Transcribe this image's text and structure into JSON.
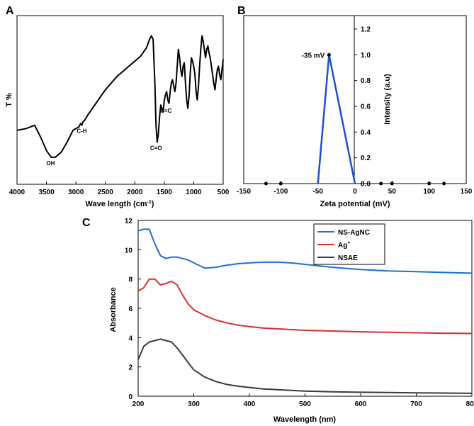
{
  "chart_data": [
    {
      "panel": "A",
      "type": "line",
      "title": "",
      "xlabel": "Wave length (cm",
      "xlabel_sup": "-1",
      "xlabel_suffix": ")",
      "ylabel": "T %",
      "xlim": [
        4000,
        500
      ],
      "ylim": [
        0,
        100
      ],
      "xticks": [
        4000,
        3500,
        3000,
        2500,
        2000,
        1500,
        1000,
        500
      ],
      "x": [
        4000,
        3850,
        3700,
        3600,
        3500,
        3420,
        3350,
        3250,
        3150,
        3050,
        2950,
        2920,
        2900,
        2880,
        2850,
        2800,
        2700,
        2600,
        2500,
        2400,
        2300,
        2200,
        2100,
        2000,
        1900,
        1800,
        1750,
        1720,
        1690,
        1660,
        1640,
        1620,
        1600,
        1580,
        1560,
        1540,
        1520,
        1500,
        1480,
        1460,
        1440,
        1420,
        1400,
        1380,
        1360,
        1340,
        1320,
        1300,
        1280,
        1260,
        1240,
        1220,
        1200,
        1180,
        1160,
        1140,
        1120,
        1100,
        1080,
        1060,
        1040,
        1020,
        1000,
        980,
        960,
        940,
        920,
        900,
        880,
        860,
        840,
        820,
        800,
        780,
        760,
        740,
        720,
        700,
        680,
        660,
        640,
        620,
        600,
        580,
        560,
        540,
        520,
        500
      ],
      "y": [
        32,
        33,
        35,
        28,
        20,
        16,
        16,
        19,
        25,
        32,
        34,
        36,
        35,
        37,
        38,
        41,
        46,
        51,
        56,
        60,
        64,
        67,
        70,
        73,
        76,
        81,
        86,
        88,
        86,
        60,
        35,
        25,
        30,
        40,
        47,
        45,
        43,
        50,
        53,
        55,
        50,
        48,
        55,
        60,
        62,
        58,
        55,
        60,
        70,
        80,
        75,
        68,
        64,
        70,
        72,
        60,
        50,
        45,
        52,
        65,
        75,
        73,
        70,
        65,
        55,
        50,
        58,
        70,
        80,
        88,
        85,
        80,
        75,
        80,
        82,
        78,
        75,
        70,
        65,
        60,
        56,
        62,
        68,
        70,
        65,
        62,
        68,
        74
      ],
      "annotations": [
        {
          "text": "OH",
          "x": 3430,
          "y": 16
        },
        {
          "text": "C-H",
          "x": 2900,
          "y": 35
        },
        {
          "text": "C=O",
          "x": 1640,
          "y": 25
        },
        {
          "text": "C=C",
          "x": 1470,
          "y": 47
        }
      ]
    },
    {
      "panel": "B",
      "type": "line",
      "title": "",
      "xlabel": "Zeta potential (mV)",
      "ylabel": "Intensity (a.u)",
      "xlim": [
        -150,
        150
      ],
      "ylim": [
        0,
        1.3
      ],
      "xticks": [
        -150,
        -100,
        -50,
        0,
        50,
        100,
        150
      ],
      "yticks": [
        0.0,
        0.2,
        0.4,
        0.6,
        0.8,
        1.0,
        1.2
      ],
      "ytick_labels": [
        "0.0",
        "0.2",
        "0.4",
        "0.6",
        "0.8",
        "1.0",
        "1.2"
      ],
      "x": [
        -50,
        -35,
        0
      ],
      "y": [
        0,
        1.0,
        0
      ],
      "markers": {
        "x": [
          -120,
          -100,
          -35,
          35,
          50,
          100,
          120
        ],
        "y": [
          0,
          0,
          1.0,
          0,
          0,
          0,
          0
        ]
      },
      "annotations": [
        {
          "text": "-35 mV",
          "x": -35,
          "y": 1.0
        }
      ]
    },
    {
      "panel": "C",
      "type": "line",
      "title": "",
      "xlabel": "Wavelength (nm)",
      "ylabel": "Absorbance",
      "xlim": [
        200,
        800
      ],
      "ylim": [
        0,
        12
      ],
      "xticks": [
        200,
        300,
        400,
        500,
        600,
        700,
        800
      ],
      "yticks": [
        0,
        2,
        4,
        6,
        8,
        10,
        12
      ],
      "x": [
        200,
        210,
        220,
        230,
        240,
        250,
        260,
        270,
        280,
        290,
        300,
        320,
        340,
        360,
        380,
        400,
        425,
        450,
        475,
        500,
        550,
        600,
        650,
        700,
        750,
        800
      ],
      "series": [
        {
          "name": "NS-AgNC",
          "color": "#1f6fd1",
          "values": [
            11.3,
            11.4,
            11.4,
            10.4,
            9.6,
            9.4,
            9.5,
            9.5,
            9.4,
            9.3,
            9.1,
            8.75,
            8.8,
            8.95,
            9.05,
            9.1,
            9.15,
            9.15,
            9.1,
            9.0,
            8.8,
            8.65,
            8.55,
            8.5,
            8.45,
            8.4
          ]
        },
        {
          "name": "Ag",
          "name_sup": "+",
          "color": "#d62f2f",
          "values": [
            7.2,
            7.4,
            8.0,
            8.0,
            7.6,
            7.7,
            7.85,
            7.6,
            6.9,
            6.3,
            5.9,
            5.5,
            5.2,
            5.0,
            4.85,
            4.75,
            4.65,
            4.6,
            4.55,
            4.5,
            4.45,
            4.4,
            4.37,
            4.33,
            4.3,
            4.28
          ]
        },
        {
          "name": "NSAE",
          "color": "#3a3a3a",
          "values": [
            2.5,
            3.4,
            3.7,
            3.8,
            3.9,
            3.8,
            3.7,
            3.3,
            2.8,
            2.3,
            1.8,
            1.3,
            1.0,
            0.8,
            0.68,
            0.6,
            0.5,
            0.45,
            0.4,
            0.35,
            0.3,
            0.27,
            0.25,
            0.23,
            0.22,
            0.2
          ]
        }
      ]
    }
  ]
}
